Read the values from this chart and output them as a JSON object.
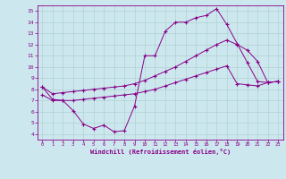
{
  "xlabel": "Windchill (Refroidissement éolien,°C)",
  "background_color": "#cce8ee",
  "line_color": "#880088",
  "grid_color": "#aacccc",
  "xlim": [
    -0.5,
    23.5
  ],
  "ylim": [
    3.5,
    15.5
  ],
  "xticks": [
    0,
    1,
    2,
    3,
    4,
    5,
    6,
    7,
    8,
    9,
    10,
    11,
    12,
    13,
    14,
    15,
    16,
    17,
    18,
    19,
    20,
    21,
    22,
    23
  ],
  "yticks": [
    4,
    5,
    6,
    7,
    8,
    9,
    10,
    11,
    12,
    13,
    14,
    15
  ],
  "line1_x": [
    0,
    1,
    2,
    3,
    4,
    5,
    6,
    7,
    8,
    9,
    10,
    11,
    12,
    13,
    14,
    15,
    16,
    17,
    18,
    19,
    20,
    21,
    22,
    23
  ],
  "line1_y": [
    8.2,
    7.1,
    7.0,
    6.1,
    4.9,
    4.5,
    4.8,
    4.2,
    4.3,
    6.5,
    11.0,
    11.0,
    13.2,
    14.0,
    14.0,
    14.4,
    14.6,
    15.2,
    13.8,
    12.1,
    10.4,
    8.7,
    8.6,
    8.7
  ],
  "line2_x": [
    0,
    1,
    2,
    3,
    4,
    5,
    6,
    7,
    8,
    9,
    10,
    11,
    12,
    13,
    14,
    15,
    16,
    17,
    18,
    19,
    20,
    21,
    22,
    23
  ],
  "line2_y": [
    8.2,
    7.6,
    7.7,
    7.8,
    7.9,
    8.0,
    8.1,
    8.2,
    8.3,
    8.5,
    8.8,
    9.2,
    9.6,
    10.0,
    10.5,
    11.0,
    11.5,
    12.0,
    12.4,
    12.0,
    11.5,
    10.5,
    8.6,
    8.7
  ],
  "line3_x": [
    0,
    1,
    2,
    3,
    4,
    5,
    6,
    7,
    8,
    9,
    10,
    11,
    12,
    13,
    14,
    15,
    16,
    17,
    18,
    19,
    20,
    21,
    22,
    23
  ],
  "line3_y": [
    7.5,
    7.0,
    7.0,
    7.0,
    7.1,
    7.2,
    7.3,
    7.4,
    7.5,
    7.6,
    7.8,
    8.0,
    8.3,
    8.6,
    8.9,
    9.2,
    9.5,
    9.8,
    10.1,
    8.5,
    8.4,
    8.3,
    8.6,
    8.7
  ]
}
